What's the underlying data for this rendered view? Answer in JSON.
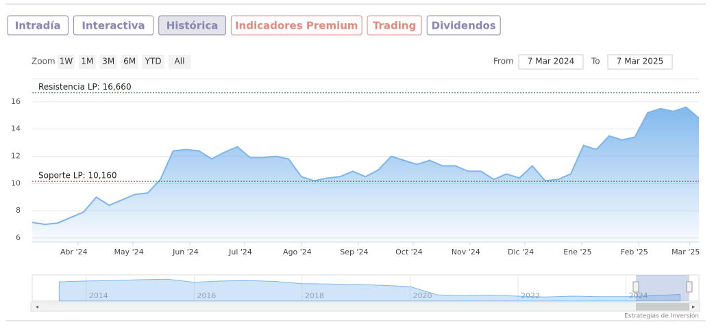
{
  "tabs": [
    "Intradía",
    "Interactiva",
    "Histórica",
    "Indicadores Premium",
    "Trading",
    "Dividendos"
  ],
  "zoom": {
    "label": "Zoom",
    "buttons": [
      "1W",
      "1M",
      "3M",
      "6M",
      "YTD",
      "All"
    ]
  },
  "range": {
    "from_label": "From",
    "from": "7 Mar 2024",
    "to_label": "To",
    "to": "7 Mar 2025"
  },
  "chart_data": {
    "type": "area",
    "color": "#7cb5ec",
    "values": [
      7.15,
      7.0,
      7.1,
      7.5,
      7.9,
      9.0,
      8.4,
      8.8,
      9.2,
      9.3,
      10.3,
      12.4,
      12.5,
      12.4,
      11.8,
      12.3,
      12.7,
      11.9,
      11.9,
      12.0,
      11.8,
      10.5,
      10.2,
      10.4,
      10.5,
      10.9,
      10.5,
      11.0,
      12.0,
      11.7,
      11.4,
      11.7,
      11.3,
      11.3,
      10.9,
      10.9,
      10.3,
      10.7,
      10.4,
      11.3,
      10.2,
      10.3,
      10.7,
      12.8,
      12.5,
      13.5,
      13.2,
      13.4,
      15.2,
      15.5,
      15.3,
      15.6,
      14.8
    ],
    "xlim": [
      0,
      52
    ],
    "xticks": [
      {
        "value": 3.57,
        "label": "Abr '24"
      },
      {
        "value": 7.86,
        "label": "May '24"
      },
      {
        "value": 12.29,
        "label": "Jun '24"
      },
      {
        "value": 16.57,
        "label": "Jul '24"
      },
      {
        "value": 21.0,
        "label": "Ago '24"
      },
      {
        "value": 25.43,
        "label": "Sep '24"
      },
      {
        "value": 29.71,
        "label": "Oct '24"
      },
      {
        "value": 34.14,
        "label": "Nov '24"
      },
      {
        "value": 38.43,
        "label": "Dic '24"
      },
      {
        "value": 42.86,
        "label": "Ene '25"
      },
      {
        "value": 47.29,
        "label": "Feb '25"
      },
      {
        "value": 51.29,
        "label": "Mar '25"
      }
    ],
    "ylim": [
      5.7,
      17.7
    ],
    "yticks": [
      6,
      8,
      10,
      12,
      14,
      16
    ],
    "grid": true,
    "annotations": [
      {
        "label": "Resistencia LP: 16,660",
        "value": 16.66,
        "color": "#2e6b2e"
      },
      {
        "label": "Soporte LP: 10,160",
        "value": 10.16,
        "color": "#b22222"
      }
    ],
    "navigator": {
      "x": [
        2013.5,
        2014,
        2014.5,
        2015,
        2015.5,
        2016,
        2016.5,
        2017,
        2017.5,
        2018,
        2018.5,
        2019,
        2019.5,
        2020,
        2020.5,
        2021,
        2021.5,
        2022,
        2022.5,
        2023,
        2023.5,
        2024,
        2024.5,
        2025
      ],
      "values": [
        44,
        46,
        47,
        49,
        50,
        43,
        46,
        47,
        45,
        40,
        39,
        38,
        36,
        33,
        14,
        12,
        13,
        11,
        9,
        11,
        10,
        10,
        12,
        15
      ],
      "xlim": [
        2013,
        2025.35
      ],
      "ylim": [
        0,
        60
      ],
      "xticks": [
        2014,
        2016,
        2018,
        2020,
        2022,
        2024
      ]
    }
  },
  "footer": "Estrategias de Inversión"
}
